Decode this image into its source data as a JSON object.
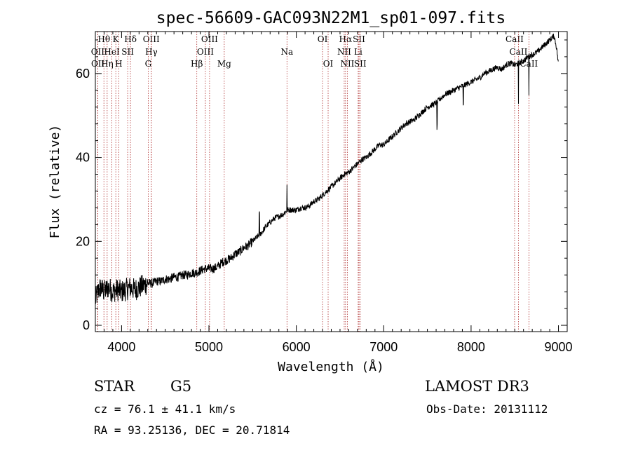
{
  "chart_data": {
    "type": "line",
    "title": "spec-56609-GAC093N22M1_sp01-097.fits",
    "xlabel": "Wavelength (Å)",
    "ylabel": "Flux (relative)",
    "xlim": [
      3700,
      9100
    ],
    "ylim": [
      -1.5,
      70
    ],
    "x_ticks": [
      4000,
      5000,
      6000,
      7000,
      8000,
      9000
    ],
    "y_ticks": [
      0,
      20,
      40,
      60
    ],
    "series": [
      {
        "name": "spectrum",
        "x": [
          3700,
          3730,
          3760,
          3800,
          3850,
          3900,
          3950,
          4000,
          4050,
          4100,
          4150,
          4200,
          4250,
          4300,
          4350,
          4400,
          4450,
          4500,
          4550,
          4600,
          4650,
          4700,
          4750,
          4800,
          4850,
          4900,
          4950,
          5000,
          5050,
          5100,
          5150,
          5200,
          5250,
          5300,
          5350,
          5400,
          5450,
          5500,
          5550,
          5600,
          5650,
          5700,
          5750,
          5800,
          5850,
          5900,
          5950,
          6000,
          6050,
          6100,
          6150,
          6200,
          6250,
          6300,
          6350,
          6400,
          6450,
          6500,
          6550,
          6600,
          6650,
          6700,
          6750,
          6800,
          6850,
          6900,
          6950,
          7000,
          7050,
          7100,
          7150,
          7200,
          7250,
          7300,
          7350,
          7400,
          7450,
          7500,
          7550,
          7600,
          7650,
          7700,
          7750,
          7800,
          7850,
          7900,
          7950,
          8000,
          8050,
          8100,
          8150,
          8200,
          8250,
          8300,
          8350,
          8400,
          8450,
          8500,
          8550,
          8600,
          8650,
          8700,
          8750,
          8800,
          8850,
          8900,
          8950,
          8980,
          9000
        ],
        "y": [
          6,
          8,
          9,
          8,
          9,
          8,
          8.5,
          8,
          8.5,
          9,
          8.5,
          9,
          9.5,
          10,
          10,
          10.5,
          10.5,
          11,
          11,
          11.5,
          11.5,
          12,
          12,
          12.5,
          12.5,
          13,
          13.5,
          13.5,
          13.5,
          14,
          15,
          15.5,
          16,
          17,
          17.5,
          18.5,
          19,
          20,
          21,
          22,
          23.5,
          24.5,
          25.5,
          26,
          26.5,
          27.5,
          27.5,
          27.5,
          28,
          28,
          28.5,
          29.5,
          30,
          31,
          32,
          33,
          34,
          35,
          36,
          36.5,
          37.5,
          38.5,
          39.5,
          40,
          41,
          42,
          43,
          43,
          44,
          45,
          46,
          47,
          48,
          48.5,
          49,
          50,
          51,
          52,
          52.5,
          53,
          54,
          55,
          55.5,
          56,
          56.5,
          57,
          57.5,
          58,
          58.5,
          59,
          60,
          60.5,
          61,
          61.5,
          61,
          62,
          62.5,
          62,
          62.5,
          63,
          64,
          64.5,
          65,
          66,
          67,
          68,
          69,
          66,
          62
        ]
      }
    ],
    "spectral_lines": [
      {
        "label": "Hθ",
        "wave": 3798,
        "row": 0
      },
      {
        "label": "OII",
        "wave": 3727,
        "row": 1
      },
      {
        "label": "OII",
        "wave": 3729,
        "row": 2
      },
      {
        "label": "Hη",
        "wave": 3835,
        "row": 2
      },
      {
        "label": "HeI",
        "wave": 3889,
        "row": 1
      },
      {
        "label": "K",
        "wave": 3934,
        "row": 0
      },
      {
        "label": "H",
        "wave": 3968,
        "row": 2
      },
      {
        "label": "SII",
        "wave": 4070,
        "row": 1
      },
      {
        "label": "Hδ",
        "wave": 4102,
        "row": 0
      },
      {
        "label": "OIII",
        "wave": 4340,
        "row": 0
      },
      {
        "label": "Hγ",
        "wave": 4341,
        "row": 1
      },
      {
        "label": "G",
        "wave": 4305,
        "row": 2
      },
      {
        "label": "Hβ",
        "wave": 4861,
        "row": 2
      },
      {
        "label": "OIII",
        "wave": 4959,
        "row": 1
      },
      {
        "label": "OIII",
        "wave": 5007,
        "row": 0
      },
      {
        "label": "Mg",
        "wave": 5175,
        "row": 2
      },
      {
        "label": "Na",
        "wave": 5893,
        "row": 1
      },
      {
        "label": "OI",
        "wave": 6300,
        "row": 0
      },
      {
        "label": "OI",
        "wave": 6364,
        "row": 2
      },
      {
        "label": "Hα",
        "wave": 6563,
        "row": 0
      },
      {
        "label": "NII",
        "wave": 6548,
        "row": 1
      },
      {
        "label": "NII",
        "wave": 6584,
        "row": 2
      },
      {
        "label": "SII",
        "wave": 6717,
        "row": 0
      },
      {
        "label": "Li",
        "wave": 6708,
        "row": 1
      },
      {
        "label": "SII",
        "wave": 6731,
        "row": 2
      },
      {
        "label": "CaII",
        "wave": 8498,
        "row": 0
      },
      {
        "label": "CaII",
        "wave": 8542,
        "row": 1
      },
      {
        "label": "CaII",
        "wave": 8662,
        "row": 2
      }
    ]
  },
  "info": {
    "object_type": "STAR",
    "subclass": "G5",
    "survey": "LAMOST DR3",
    "cz": "cz = 76.1 ± 41.1 km/s",
    "obs_date": "Obs-Date: 20131112",
    "coords": "RA =  93.25136, DEC =  20.71814"
  }
}
